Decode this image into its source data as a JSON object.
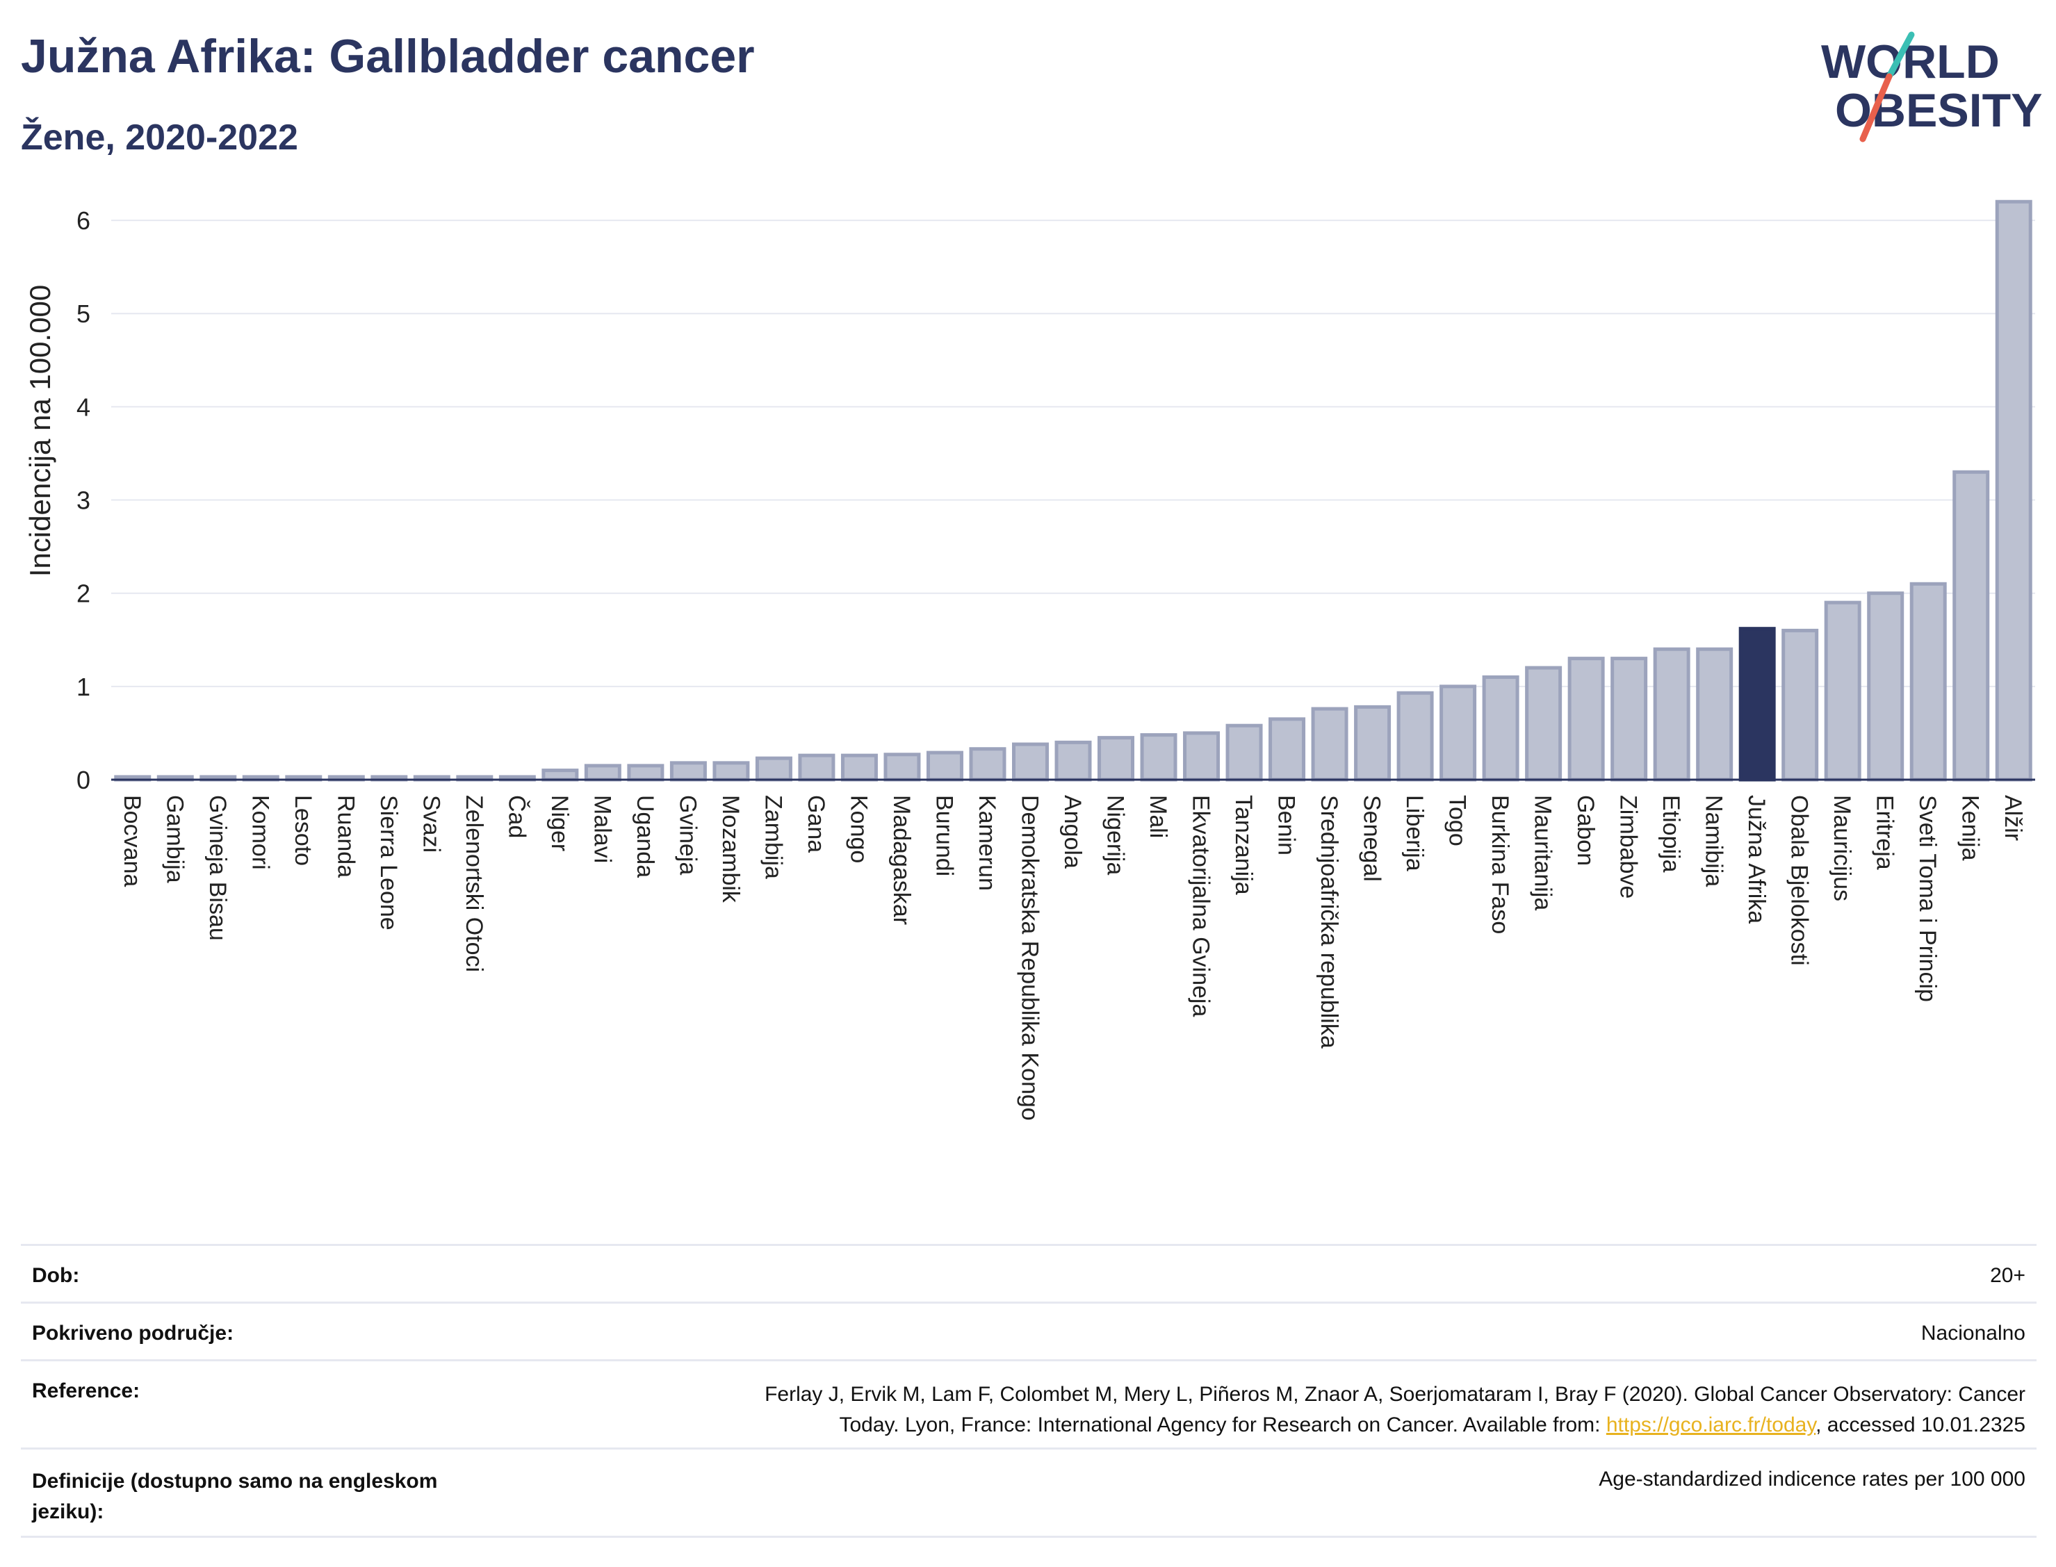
{
  "header": {
    "title": "Južna Afrika: Gallbladder cancer",
    "subtitle": "Žene, 2020-2022"
  },
  "logo": {
    "line1": "WORLD",
    "line2": "OBESITY"
  },
  "chart_data": {
    "type": "bar",
    "ylabel": "Incidencija na 100.000",
    "ylim": [
      0,
      6.5
    ],
    "yticks": [
      0,
      1,
      2,
      3,
      4,
      5,
      6
    ],
    "grid": true,
    "highlight": "Južna Afrika",
    "colors": {
      "bar": "#bcc1d1",
      "bar_edge": "#9ca3bc",
      "highlight": "#2b3560",
      "axis": "#2b3560",
      "grid": "#e6e8f0"
    },
    "categories": [
      "Bocvana",
      "Gambija",
      "Gvineja Bisau",
      "Komori",
      "Lesoto",
      "Ruanda",
      "Sierra Leone",
      "Svazi",
      "Zelenortski Otoci",
      "Čad",
      "Niger",
      "Malavi",
      "Uganda",
      "Gvineja",
      "Mozambik",
      "Zambija",
      "Gana",
      "Kongo",
      "Madagaskar",
      "Burundi",
      "Kamerun",
      "Demokratska Republika Kongo",
      "Angola",
      "Nigerija",
      "Mali",
      "Ekvatorijalna Gvineja",
      "Tanzanija",
      "Benin",
      "Srednjoafrička republika",
      "Senegal",
      "Liberija",
      "Togo",
      "Burkina Faso",
      "Mauritanija",
      "Gabon",
      "Zimbabve",
      "Etiopija",
      "Namibija",
      "Južna Afrika",
      "Obala Bjelokosti",
      "Mauricijus",
      "Eritreja",
      "Sveti Toma i Princip",
      "Kenija",
      "Alžir"
    ],
    "values": [
      0.03,
      0.03,
      0.03,
      0.03,
      0.03,
      0.03,
      0.03,
      0.03,
      0.03,
      0.03,
      0.1,
      0.15,
      0.15,
      0.18,
      0.18,
      0.23,
      0.26,
      0.26,
      0.27,
      0.29,
      0.33,
      0.38,
      0.4,
      0.45,
      0.48,
      0.5,
      0.58,
      0.65,
      0.76,
      0.78,
      0.93,
      1.0,
      1.1,
      1.2,
      1.3,
      1.3,
      1.4,
      1.4,
      1.62,
      1.6,
      1.9,
      2.0,
      2.1,
      3.3,
      6.2
    ]
  },
  "info": {
    "age_label": "Dob:",
    "age_value": "20+",
    "coverage_label": "Pokriveno područje:",
    "coverage_value": "Nacionalno",
    "ref_label": "Reference:",
    "ref_line1": "Ferlay J, Ervik M, Lam F, Colombet M, Mery L, Piñeros M, Znaor A, Soerjomataram I, Bray F (2020). Global Cancer Observatory: Cancer",
    "ref_line2_pre": "Today. Lyon, France: International Agency for Research on Cancer. Available from: ",
    "ref_link": "https://gco.iarc.fr/today",
    "ref_line2_post": ", accessed 10.01.2325",
    "def_label_1": "Definicije (dostupno samo na engleskom",
    "def_label_2": "jeziku):",
    "def_value": "Age-standardized indicence rates per 100 000"
  }
}
